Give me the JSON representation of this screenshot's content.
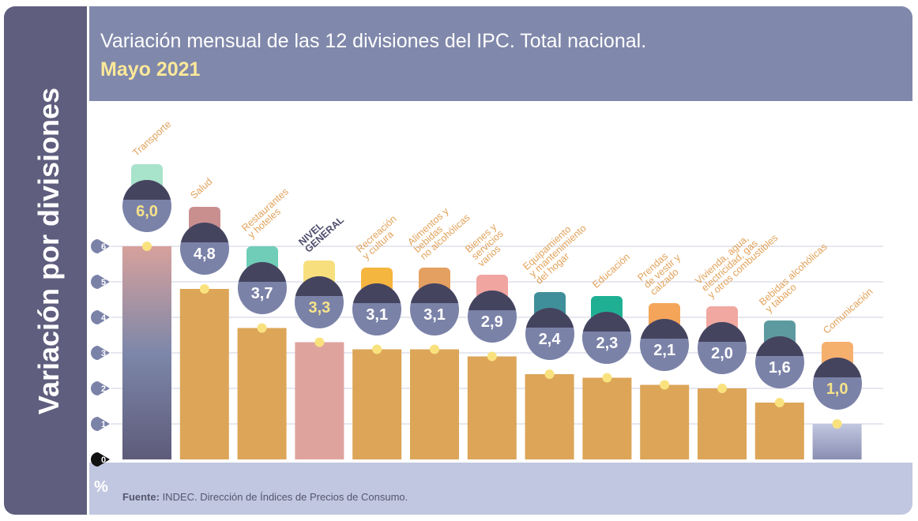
{
  "sidebar_title": "Variación por divisiones",
  "header": {
    "title": "Variación mensual de las 12 divisiones del IPC. Total nacional.",
    "subtitle": "Mayo 2021"
  },
  "footer": {
    "unit": "%",
    "source_label": "Fuente:",
    "source_text": " INDEC. Dirección de Índices de Precios de Consumo."
  },
  "chart_data": {
    "type": "bar",
    "categories": [
      "Transporte",
      "Salud",
      "Restaurantes\ny hoteles",
      "NIVEL\nGENERAL",
      "Recreación\ny cultura",
      "Alimentos y\nbebidas\nno alcohólicas",
      "Bienes y\nservicios\nvarios",
      "Equipamiento\ny mantenimiento\ndel hogar",
      "Educación",
      "Prendas\nde vestir y\ncalzado",
      "Vivienda, agua,\nelectricidad, gas\ny otros combustibles",
      "Bebidas alcohólicas\ny tabaco",
      "Comunicación"
    ],
    "values": [
      6.0,
      4.8,
      3.7,
      3.3,
      3.1,
      3.1,
      2.9,
      2.4,
      2.3,
      2.1,
      2.0,
      1.6,
      1.0
    ],
    "value_labels": [
      "6,0",
      "4,8",
      "3,7",
      "3,3",
      "3,1",
      "3,1",
      "2,9",
      "2,4",
      "2,3",
      "2,1",
      "2,0",
      "1,6",
      "1,0"
    ],
    "highlighted": [
      "Transporte",
      "NIVEL\nGENERAL",
      "Comunicación"
    ],
    "icons": [
      "sube-card-car",
      "first-aid-kit",
      "plate-cutlery-plane",
      "shopping-basket",
      "sun-beach-ball",
      "roast-chicken",
      "comb-scissors",
      "washing-machine",
      "books-pencil",
      "tshirt-shoe",
      "lightbulb-tools",
      "wine-bottle-glass",
      "smartphone"
    ],
    "yticks": [
      "0",
      "1",
      "2",
      "3",
      "4",
      "5",
      "6"
    ],
    "ylim": [
      0,
      6.5
    ],
    "grid": true,
    "colors": {
      "bar": "#dca558",
      "nivel_general": "#dfa39e",
      "transporte_top": "#d7a19c",
      "transporte_bottom": "#5e5b7a",
      "comunicacion_top": "#c1c7e0",
      "comunicacion_bottom": "#8a8fb2",
      "badge": "#7b82a8",
      "dot": "#f9e27e",
      "label": "#e2a25a"
    }
  }
}
